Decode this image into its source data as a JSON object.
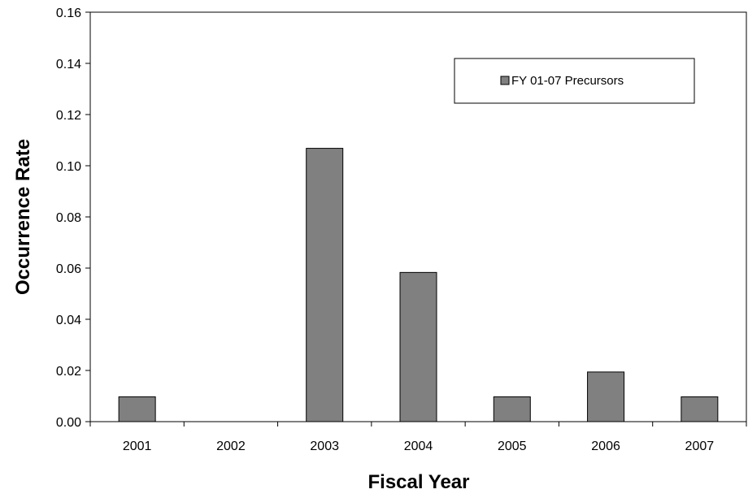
{
  "chart_data": {
    "type": "bar",
    "categories": [
      "2001",
      "2002",
      "2003",
      "2004",
      "2005",
      "2006",
      "2007"
    ],
    "series": [
      {
        "name": "FY 01-07 Precursors",
        "values": [
          0.0097,
          0.0,
          0.1068,
          0.0583,
          0.0097,
          0.0194,
          0.0097
        ],
        "color": "#808080"
      }
    ],
    "title": "",
    "xlabel": "Fiscal Year",
    "ylabel": "Occurrence Rate",
    "ylim": [
      0,
      0.16
    ],
    "yticks": [
      "0.00",
      "0.02",
      "0.04",
      "0.06",
      "0.08",
      "0.10",
      "0.12",
      "0.14",
      "0.16"
    ],
    "grid": false,
    "legend_position": "top-right"
  }
}
